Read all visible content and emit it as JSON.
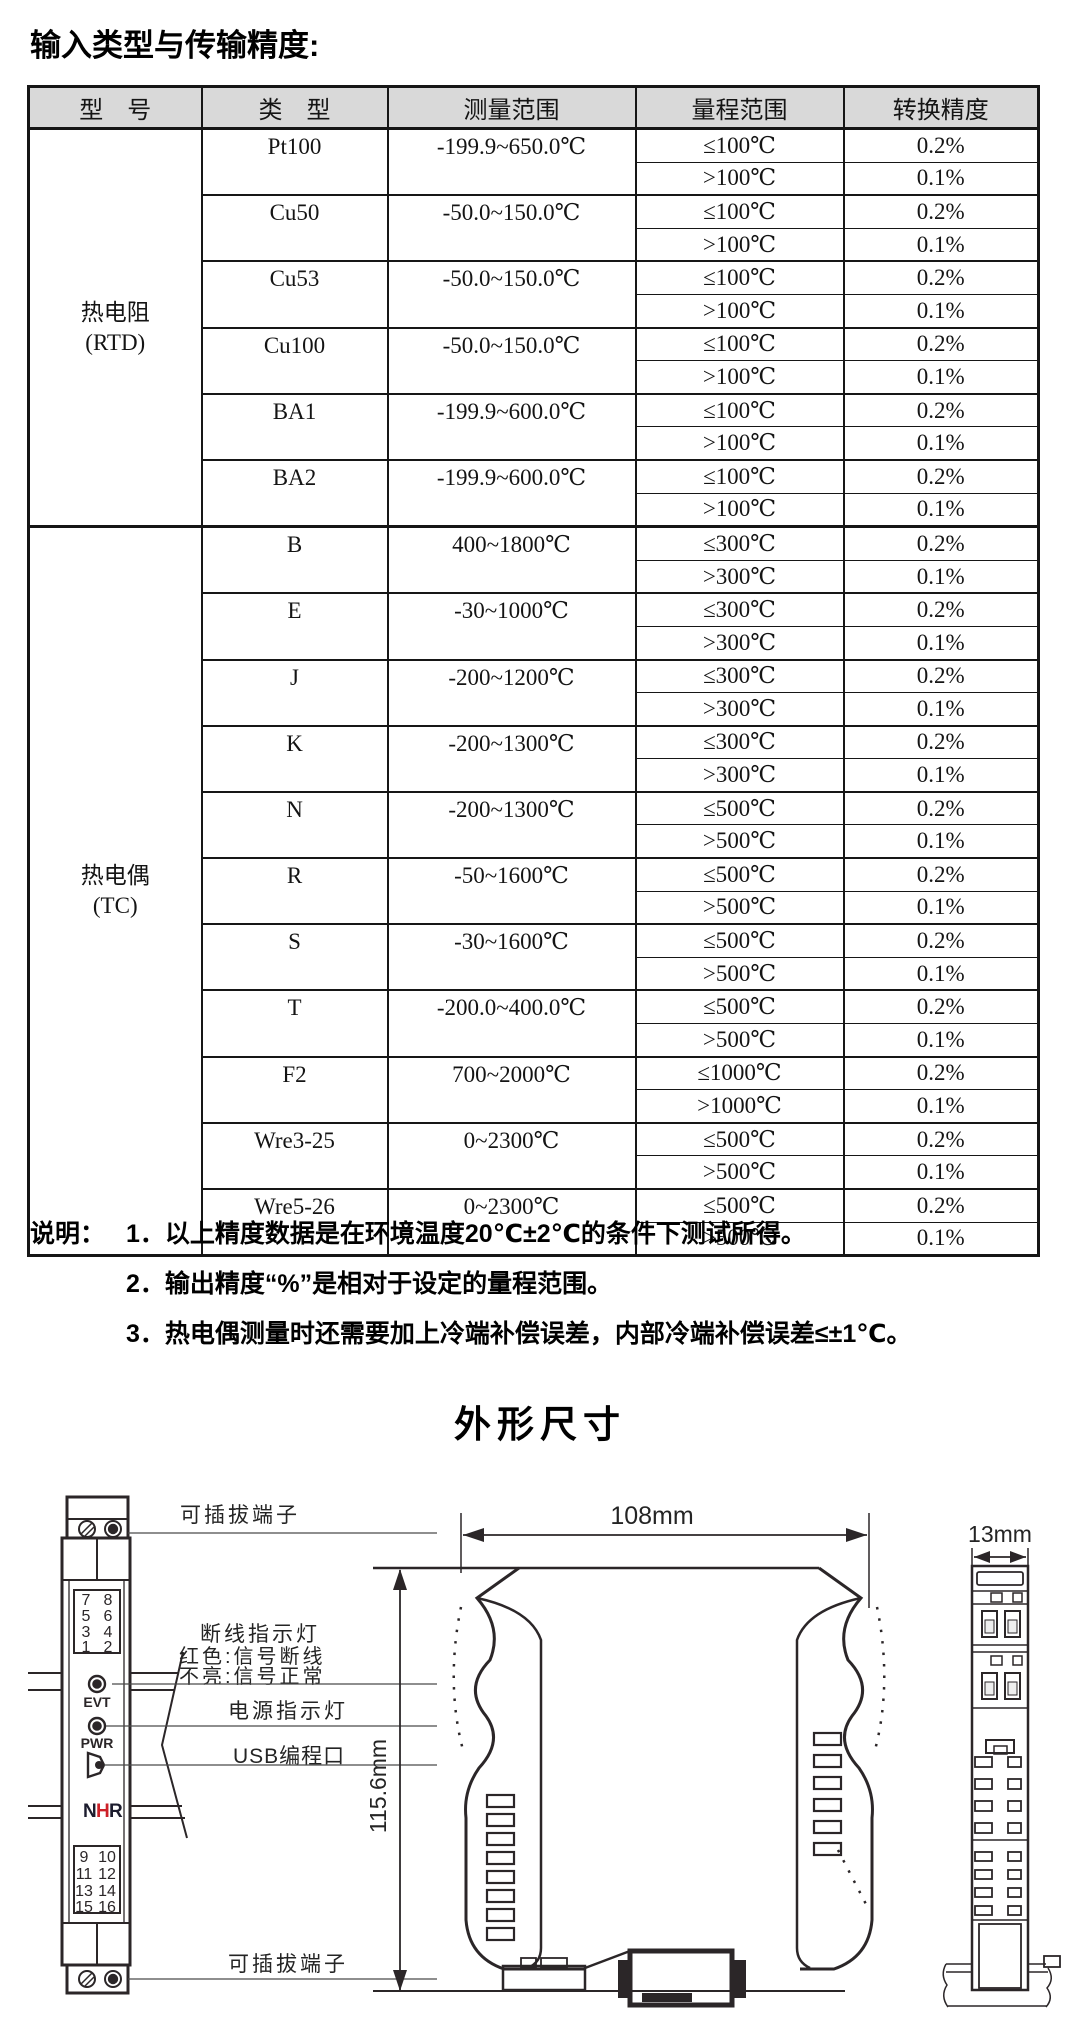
{
  "page": {
    "title": "输入类型与传输精度:",
    "section2_title": "外形尺寸"
  },
  "table": {
    "headers": [
      "型　号",
      "类　型",
      "测量范围",
      "量程范围",
      "转换精度"
    ],
    "groups": [
      {
        "model": [
          "热电阻",
          "(RTD)"
        ],
        "types": [
          {
            "type": "Pt100",
            "range": "-199.9~650.0℃",
            "rows": [
              [
                "≤100℃",
                "0.2%"
              ],
              [
                ">100℃",
                "0.1%"
              ]
            ]
          },
          {
            "type": "Cu50",
            "range": "-50.0~150.0℃",
            "rows": [
              [
                "≤100℃",
                "0.2%"
              ],
              [
                ">100℃",
                "0.1%"
              ]
            ]
          },
          {
            "type": "Cu53",
            "range": "-50.0~150.0℃",
            "rows": [
              [
                "≤100℃",
                "0.2%"
              ],
              [
                ">100℃",
                "0.1%"
              ]
            ]
          },
          {
            "type": "Cu100",
            "range": "-50.0~150.0℃",
            "rows": [
              [
                "≤100℃",
                "0.2%"
              ],
              [
                ">100℃",
                "0.1%"
              ]
            ]
          },
          {
            "type": "BA1",
            "range": "-199.9~600.0℃",
            "rows": [
              [
                "≤100℃",
                "0.2%"
              ],
              [
                ">100℃",
                "0.1%"
              ]
            ]
          },
          {
            "type": "BA2",
            "range": "-199.9~600.0℃",
            "rows": [
              [
                "≤100℃",
                "0.2%"
              ],
              [
                ">100℃",
                "0.1%"
              ]
            ]
          }
        ]
      },
      {
        "model": [
          "热电偶",
          "(TC)"
        ],
        "types": [
          {
            "type": "B",
            "range": "400~1800℃",
            "rows": [
              [
                "≤300℃",
                "0.2%"
              ],
              [
                ">300℃",
                "0.1%"
              ]
            ]
          },
          {
            "type": "E",
            "range": "-30~1000℃",
            "rows": [
              [
                "≤300℃",
                "0.2%"
              ],
              [
                ">300℃",
                "0.1%"
              ]
            ]
          },
          {
            "type": "J",
            "range": "-200~1200℃",
            "rows": [
              [
                "≤300℃",
                "0.2%"
              ],
              [
                ">300℃",
                "0.1%"
              ]
            ]
          },
          {
            "type": "K",
            "range": "-200~1300℃",
            "rows": [
              [
                "≤300℃",
                "0.2%"
              ],
              [
                ">300℃",
                "0.1%"
              ]
            ]
          },
          {
            "type": "N",
            "range": "-200~1300℃",
            "rows": [
              [
                "≤500℃",
                "0.2%"
              ],
              [
                ">500℃",
                "0.1%"
              ]
            ]
          },
          {
            "type": "R",
            "range": "-50~1600℃",
            "rows": [
              [
                "≤500℃",
                "0.2%"
              ],
              [
                ">500℃",
                "0.1%"
              ]
            ]
          },
          {
            "type": "S",
            "range": "-30~1600℃",
            "rows": [
              [
                "≤500℃",
                "0.2%"
              ],
              [
                ">500℃",
                "0.1%"
              ]
            ]
          },
          {
            "type": "T",
            "range": "-200.0~400.0℃",
            "rows": [
              [
                "≤500℃",
                "0.2%"
              ],
              [
                ">500℃",
                "0.1%"
              ]
            ]
          },
          {
            "type": "F2",
            "range": "700~2000℃",
            "rows": [
              [
                "≤1000℃",
                "0.2%"
              ],
              [
                ">1000℃",
                "0.1%"
              ]
            ]
          },
          {
            "type": "Wre3-25",
            "range": "0~2300℃",
            "rows": [
              [
                "≤500℃",
                "0.2%"
              ],
              [
                ">500℃",
                "0.1%"
              ]
            ]
          },
          {
            "type": "Wre5-26",
            "range": "0~2300℃",
            "rows": [
              [
                "≤500℃",
                "0.2%"
              ],
              [
                ">500℃",
                "0.1%"
              ]
            ]
          }
        ]
      }
    ]
  },
  "notes": {
    "prefix": "说明：",
    "items": [
      "1．以上精度数据是在环境温度20℃±2℃的条件下测试所得。",
      "2．输出精度“%”是相对于设定的量程范围。",
      "3．热电偶测量时还需要加上冷端补偿误差，内部冷端补偿误差≤±1℃。"
    ]
  },
  "drawing": {
    "labels": {
      "plug_terminal_top": "可插拔端子",
      "led_line1": "断线指示灯",
      "led_line2": "红色:信号断线",
      "led_line3": "不亮:信号正常",
      "power_led": "电源指示灯",
      "usb": "USB编程口",
      "plug_terminal_bottom": "可插拔端子"
    },
    "dims": {
      "width": "108mm",
      "height": "115.6mm",
      "depth": "13mm"
    },
    "module": {
      "evt": "EVT",
      "pwr": "PWR",
      "logo": [
        "N",
        "H",
        "R"
      ],
      "terminals_top": [
        "7",
        "8",
        "5",
        "6",
        "3",
        "4",
        "1",
        "2"
      ],
      "terminals_bottom": [
        "9",
        "10",
        "11",
        "12",
        "13",
        "14",
        "15",
        "16"
      ]
    },
    "colors": {
      "line": "#2b2628",
      "logo_red": "#cc2128"
    }
  }
}
